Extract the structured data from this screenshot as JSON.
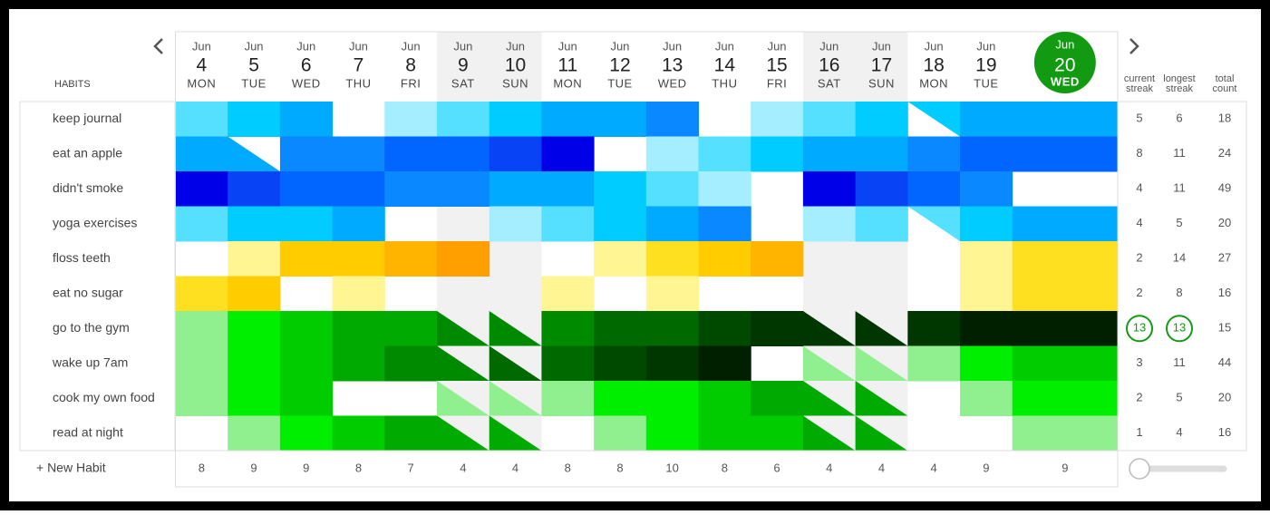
{
  "header": {
    "title": "HABITS"
  },
  "days": [
    {
      "month": "Jun",
      "day": 4,
      "weekday": "MON"
    },
    {
      "month": "Jun",
      "day": 5,
      "weekday": "TUE"
    },
    {
      "month": "Jun",
      "day": 6,
      "weekday": "WED"
    },
    {
      "month": "Jun",
      "day": 7,
      "weekday": "THU"
    },
    {
      "month": "Jun",
      "day": 8,
      "weekday": "FRI"
    },
    {
      "month": "Jun",
      "day": 9,
      "weekday": "SAT"
    },
    {
      "month": "Jun",
      "day": 10,
      "weekday": "SUN"
    },
    {
      "month": "Jun",
      "day": 11,
      "weekday": "MON"
    },
    {
      "month": "Jun",
      "day": 12,
      "weekday": "TUE"
    },
    {
      "month": "Jun",
      "day": 13,
      "weekday": "WED"
    },
    {
      "month": "Jun",
      "day": 14,
      "weekday": "THU"
    },
    {
      "month": "Jun",
      "day": 15,
      "weekday": "FRI"
    },
    {
      "month": "Jun",
      "day": 16,
      "weekday": "SAT"
    },
    {
      "month": "Jun",
      "day": 17,
      "weekday": "SUN"
    },
    {
      "month": "Jun",
      "day": 18,
      "weekday": "MON"
    },
    {
      "month": "Jun",
      "day": 19,
      "weekday": "TUE"
    },
    {
      "month": "Jun",
      "day": 20,
      "weekday": "WED"
    }
  ],
  "stat_headers": [
    [
      "current",
      "streak"
    ],
    [
      "longest",
      "streak"
    ],
    [
      "total",
      "count"
    ]
  ],
  "habits": [
    {
      "name": "keep journal",
      "current_streak": 5,
      "longest_streak": 6,
      "total_count": 18
    },
    {
      "name": "eat an apple",
      "current_streak": 8,
      "longest_streak": 11,
      "total_count": 24
    },
    {
      "name": "didn't smoke",
      "current_streak": 4,
      "longest_streak": 11,
      "total_count": 49
    },
    {
      "name": "yoga exercises",
      "current_streak": 4,
      "longest_streak": 5,
      "total_count": 20
    },
    {
      "name": "floss teeth",
      "current_streak": 2,
      "longest_streak": 14,
      "total_count": 27
    },
    {
      "name": "eat no sugar",
      "current_streak": 2,
      "longest_streak": 8,
      "total_count": 16
    },
    {
      "name": "go to the gym",
      "current_streak": 13,
      "longest_streak": 13,
      "total_count": 15
    },
    {
      "name": "wake up 7am",
      "current_streak": 3,
      "longest_streak": 11,
      "total_count": 44
    },
    {
      "name": "cook my own food",
      "current_streak": 2,
      "longest_streak": 5,
      "total_count": 20
    },
    {
      "name": "read at night",
      "current_streak": 1,
      "longest_streak": 4,
      "total_count": 16
    }
  ],
  "footer": {
    "new_habit": "+ New Habit",
    "daily_counts": [
      8,
      9,
      9,
      8,
      7,
      4,
      4,
      8,
      8,
      10,
      8,
      6,
      4,
      4,
      4,
      9,
      9
    ]
  }
}
